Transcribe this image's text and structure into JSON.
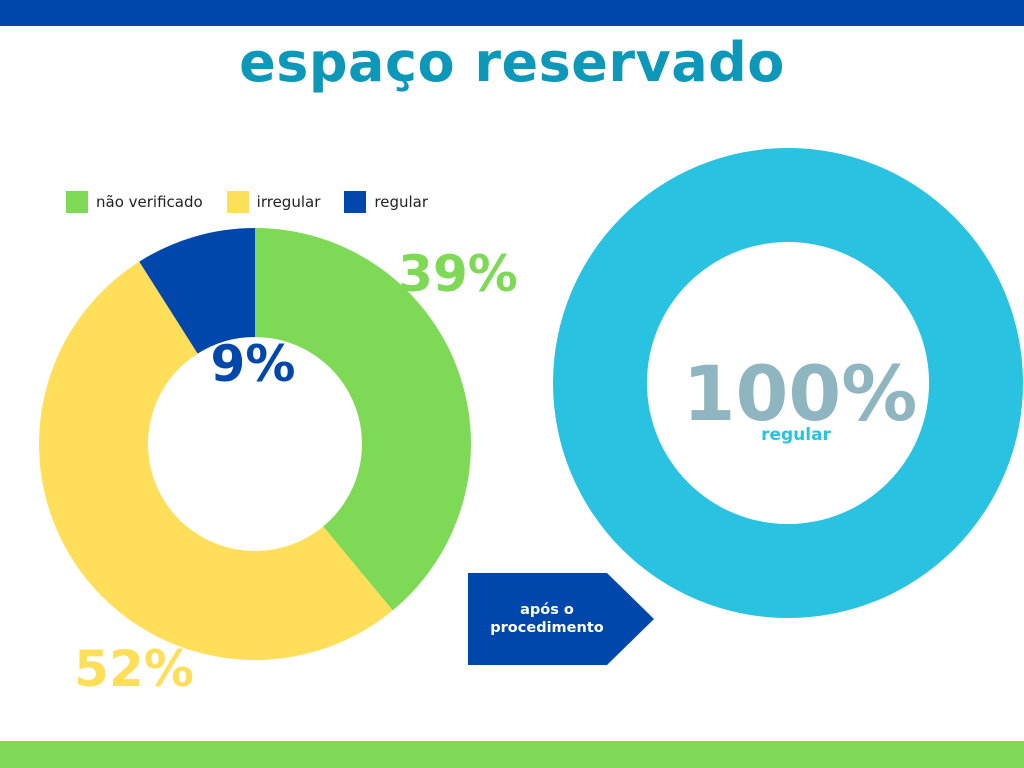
{
  "title": "espaço reservado",
  "colors": {
    "top_bar": "#0047ab",
    "bottom_bar": "#7ed957",
    "title": "#0d98ba",
    "arrow": "#0047ab"
  },
  "arrow": {
    "label": "após o\nprocedimento"
  },
  "chart_data": [
    {
      "type": "pie",
      "subtype": "donut",
      "legend": "top-left",
      "categories": [
        "não verificado",
        "irregular",
        "regular"
      ],
      "values": [
        39,
        52,
        9
      ],
      "unit": "%",
      "colors": [
        "#7ed957",
        "#ffde59",
        "#0047ab"
      ],
      "labels": [
        "39%",
        "52%",
        "9%"
      ],
      "title": ""
    },
    {
      "type": "pie",
      "subtype": "donut",
      "categories": [
        "regular"
      ],
      "values": [
        100
      ],
      "unit": "%",
      "colors": [
        "#29c2e0"
      ],
      "center_value": "100%",
      "center_label": "regular",
      "center_value_color": "#8fb5c0",
      "center_label_color": "#29c2e0",
      "title": ""
    }
  ]
}
